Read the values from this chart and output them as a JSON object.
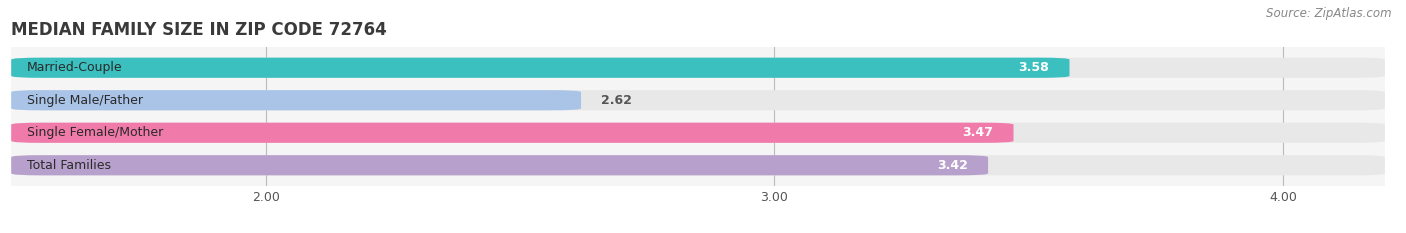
{
  "title": "MEDIAN FAMILY SIZE IN ZIP CODE 72764",
  "source": "Source: ZipAtlas.com",
  "categories": [
    "Married-Couple",
    "Single Male/Father",
    "Single Female/Mother",
    "Total Families"
  ],
  "values": [
    3.58,
    2.62,
    3.47,
    3.42
  ],
  "bar_colors": [
    "#3bbfbf",
    "#aac4e8",
    "#f07aaa",
    "#b8a0cc"
  ],
  "bar_bg_color": "#e8e8e8",
  "xlim_min": 1.5,
  "xlim_max": 4.2,
  "xticks": [
    2.0,
    3.0,
    4.0
  ],
  "xtick_labels": [
    "2.00",
    "3.00",
    "4.00"
  ],
  "background_color": "#ffffff",
  "plot_bg_color": "#f5f5f5",
  "title_fontsize": 12,
  "label_fontsize": 9,
  "value_fontsize": 9,
  "source_fontsize": 8.5,
  "bar_height": 0.62,
  "n_bars": 4
}
